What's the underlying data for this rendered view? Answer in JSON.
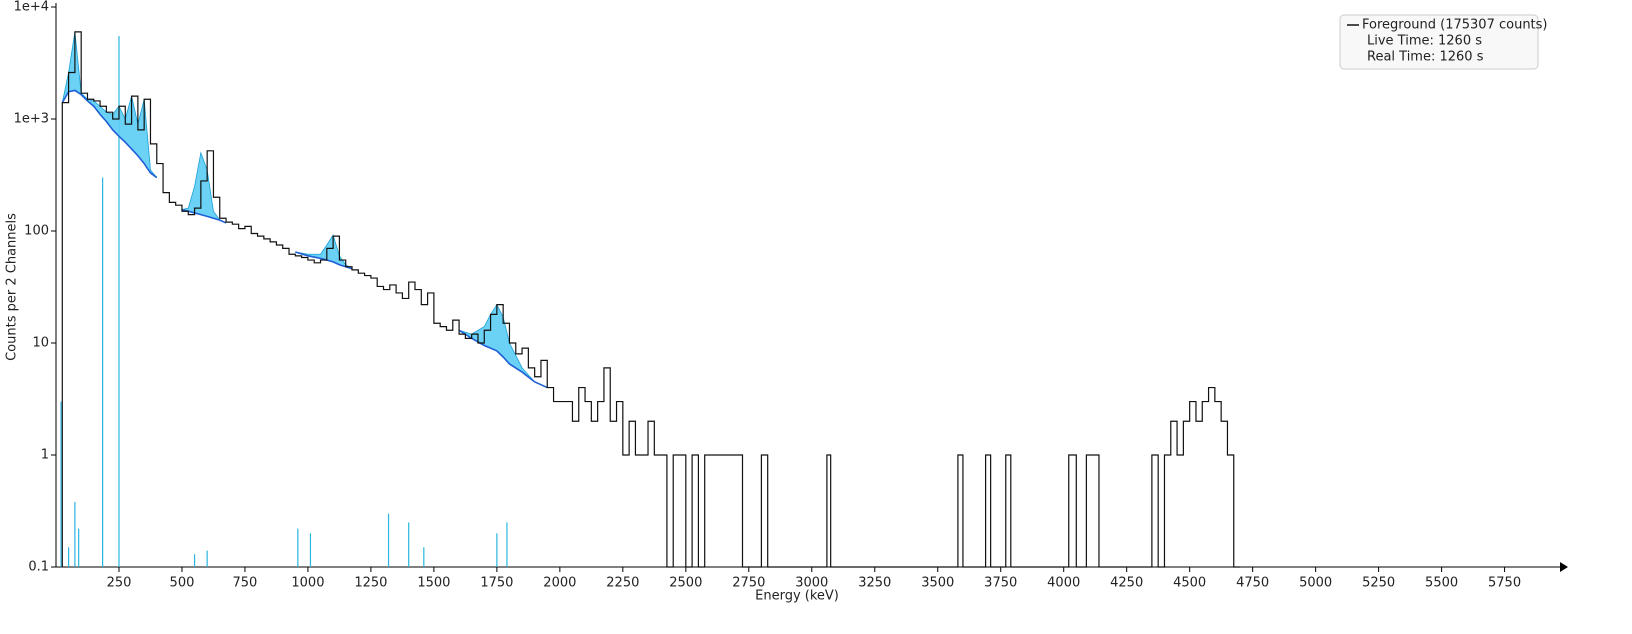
{
  "chart_data": {
    "type": "line",
    "xlabel": "Energy (keV)",
    "ylabel": "Counts per 2 Channels",
    "xlim": [
      0,
      5970
    ],
    "ylim": [
      0.1,
      10000
    ],
    "log_y": true,
    "xticks": [
      250,
      500,
      750,
      1000,
      1250,
      1500,
      1750,
      2000,
      2250,
      2500,
      2750,
      3000,
      3250,
      3500,
      3750,
      4000,
      4250,
      4500,
      4750,
      5000,
      5250,
      5500,
      5750
    ],
    "yticks": [
      0.1,
      1,
      10,
      100,
      {
        "value": 1000,
        "label": "1e+3"
      },
      {
        "value": 10000,
        "label": "1e+4"
      }
    ],
    "legend": "top-right",
    "legend_notes": [
      "Live Time: 1260 s",
      "Real Time: 1260 s"
    ],
    "series": [
      {
        "name": "Foreground (175307 counts)",
        "color": "#111111",
        "x": [
          25,
          50,
          75,
          100,
          125,
          150,
          175,
          200,
          225,
          250,
          275,
          300,
          325,
          350,
          375,
          400,
          425,
          450,
          475,
          500,
          525,
          550,
          575,
          600,
          625,
          650,
          675,
          700,
          725,
          750,
          775,
          800,
          825,
          850,
          875,
          900,
          925,
          950,
          975,
          1000,
          1025,
          1050,
          1075,
          1100,
          1125,
          1150,
          1175,
          1200,
          1225,
          1250,
          1275,
          1300,
          1325,
          1350,
          1375,
          1400,
          1425,
          1450,
          1475,
          1500,
          1525,
          1550,
          1575,
          1600,
          1625,
          1650,
          1675,
          1700,
          1725,
          1750,
          1775,
          1800,
          1825,
          1850,
          1875,
          1900,
          1925,
          1950,
          1975,
          2000,
          2025,
          2050,
          2075,
          2100,
          2125,
          2150,
          2175,
          2200,
          2225,
          2250,
          2275,
          2300,
          2325,
          2350,
          2375,
          2400,
          2425,
          2450,
          2475,
          2500,
          2525,
          2550,
          2575,
          2600,
          2625,
          2650,
          2675,
          2700,
          2725,
          2775,
          2800,
          2825,
          3050,
          3060,
          3075,
          3575,
          3580,
          3600,
          3690,
          3710,
          3770,
          3790,
          4020,
          4050,
          4090,
          4140,
          4350,
          4375,
          4400,
          4425,
          4450,
          4475,
          4500,
          4525,
          4550,
          4575,
          4600,
          4625,
          4650,
          4675
        ],
        "values": [
          1400,
          2600,
          6000,
          1700,
          1500,
          1450,
          1300,
          1150,
          1000,
          1300,
          900,
          1600,
          800,
          1500,
          600,
          400,
          220,
          180,
          170,
          150,
          140,
          160,
          280,
          520,
          200,
          130,
          120,
          115,
          105,
          110,
          95,
          90,
          85,
          80,
          75,
          70,
          62,
          60,
          58,
          55,
          52,
          55,
          70,
          90,
          55,
          48,
          45,
          42,
          40,
          38,
          32,
          30,
          33,
          28,
          25,
          35,
          30,
          22,
          28,
          15,
          14,
          13,
          16,
          12,
          11,
          12,
          10,
          13,
          18,
          22,
          15,
          10,
          8,
          9,
          6,
          5,
          7,
          4,
          3,
          3,
          3,
          2,
          4,
          3,
          2,
          3,
          6,
          2,
          3,
          1,
          2,
          1,
          1,
          2,
          1,
          1,
          0,
          1,
          1,
          0,
          1,
          0,
          1,
          1,
          1,
          1,
          1,
          1,
          0,
          0,
          1,
          0,
          0,
          1,
          0,
          0,
          1,
          0,
          1,
          0,
          1,
          0,
          1,
          0,
          1,
          0,
          1,
          0,
          1,
          2,
          1,
          2,
          3,
          2,
          3,
          4,
          3,
          2,
          1,
          0
        ]
      }
    ],
    "fit": {
      "continuum_color": "#1f5fd6",
      "peak_color": "#5bcdf4",
      "x": [
        25,
        50,
        75,
        100,
        125,
        150,
        175,
        200,
        225,
        250,
        275,
        300,
        325,
        350,
        375,
        400,
        null,
        500,
        525,
        550,
        575,
        600,
        625,
        650,
        675,
        null,
        950,
        1000,
        1050,
        1075,
        1100,
        1125,
        1150,
        1175,
        null,
        1600,
        1650,
        1700,
        1725,
        1750,
        1775,
        1800,
        1850,
        1900,
        1950
      ],
      "continuum": [
        1400,
        1750,
        1800,
        1650,
        1450,
        1300,
        1100,
        950,
        800,
        700,
        620,
        540,
        470,
        400,
        330,
        300,
        null,
        155,
        150,
        145,
        140,
        135,
        130,
        125,
        118,
        null,
        65,
        60,
        57,
        55,
        53,
        50,
        48,
        46,
        null,
        13,
        11,
        9.5,
        9,
        8.5,
        7.5,
        6.5,
        5.5,
        4.5,
        4
      ],
      "peaks": [
        1400,
        2600,
        6000,
        1700,
        1500,
        1450,
        1300,
        1150,
        1100,
        1300,
        1000,
        1600,
        900,
        1500,
        350,
        300,
        null,
        155,
        160,
        250,
        500,
        350,
        150,
        125,
        118,
        null,
        65,
        62,
        62,
        75,
        92,
        60,
        50,
        46,
        null,
        13,
        12,
        14,
        18,
        22,
        17,
        10,
        6,
        4.5,
        4
      ]
    },
    "reference_lines": {
      "color": "#29b6e0",
      "x": [
        20,
        50,
        75,
        90,
        185,
        250,
        550,
        600,
        960,
        1010,
        1320,
        1400,
        1460,
        1750,
        1790
      ],
      "values": [
        3,
        0.15,
        0.38,
        0.22,
        300,
        5500,
        0.13,
        0.14,
        0.22,
        0.2,
        0.3,
        0.25,
        0.15,
        0.2,
        0.25
      ]
    }
  }
}
